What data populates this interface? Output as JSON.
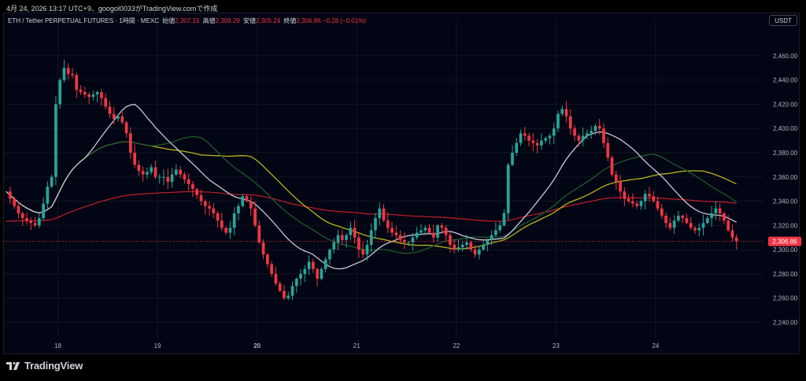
{
  "header": {
    "timestamp_line": "4月 24, 2026 13:17 UTC+9、googol0033がTradingView.comで作成"
  },
  "legend": {
    "symbol": "ETH / Tether PERPETUAL FUTURES · 1時間 · MEXC",
    "open_label": "始値",
    "open": "2,307.15",
    "high_label": "高値",
    "high": "2,309.29",
    "low_label": "安値",
    "low": "2,305.24",
    "close_label": "終値",
    "close": "2,306.86",
    "change": "−0.28 (−0.01%)"
  },
  "currency_button": "USDT",
  "footer": {
    "brand": "TradingView"
  },
  "colors": {
    "up": "#26a69a",
    "down": "#f23645",
    "ma_fast": "#c9c9d8",
    "ma_mid": "#1f5a2d",
    "ma_slow": "#b6b41e",
    "ma_long": "#b71c28",
    "grid": "#131722",
    "background": "#020513"
  },
  "chart_data": {
    "type": "candlestick",
    "title": "ETH / Tether PERPETUAL FUTURES · 1時間 · MEXC",
    "x_tick_labels": [
      "18",
      "19",
      "20",
      "21",
      "22",
      "23",
      "24"
    ],
    "x_tick_index": [
      12.5,
      36.5,
      60.5,
      84.5,
      108.5,
      132.5,
      156.5
    ],
    "bold_x_ticks": [
      "20"
    ],
    "y_ticks": [
      2240,
      2260,
      2280,
      2300,
      2320,
      2340,
      2360,
      2380,
      2400,
      2420,
      2440,
      2460
    ],
    "y_tick_labels": [
      "2,240.00",
      "2,260.00",
      "2,280.00",
      "2,300.00",
      "2,320.00",
      "2,340.00",
      "2,360.00",
      "2,380.00",
      "2,400.00",
      "2,420.00",
      "2,440.00",
      "2,460.00"
    ],
    "ylim": [
      2228,
      2480
    ],
    "last_price": 2306.86,
    "last_price_label": "2,306.86",
    "grid": true,
    "close_series": [
      2348,
      2342,
      2336,
      2330,
      2326,
      2324,
      2322,
      2320,
      2326,
      2338,
      2352,
      2360,
      2420,
      2440,
      2450,
      2445,
      2444,
      2432,
      2430,
      2428,
      2426,
      2428,
      2430,
      2425,
      2418,
      2412,
      2408,
      2410,
      2405,
      2396,
      2380,
      2370,
      2365,
      2362,
      2364,
      2368,
      2360,
      2360,
      2360,
      2356,
      2362,
      2366,
      2362,
      2358,
      2354,
      2350,
      2345,
      2340,
      2336,
      2334,
      2330,
      2324,
      2318,
      2314,
      2318,
      2330,
      2336,
      2344,
      2340,
      2334,
      2320,
      2306,
      2296,
      2288,
      2280,
      2272,
      2266,
      2260,
      2262,
      2270,
      2276,
      2280,
      2284,
      2290,
      2284,
      2276,
      2284,
      2292,
      2300,
      2306,
      2312,
      2308,
      2312,
      2318,
      2310,
      2300,
      2296,
      2304,
      2316,
      2326,
      2334,
      2324,
      2318,
      2314,
      2312,
      2308,
      2306,
      2306,
      2310,
      2314,
      2316,
      2318,
      2314,
      2310,
      2320,
      2318,
      2312,
      2304,
      2300,
      2302,
      2304,
      2306,
      2300,
      2296,
      2300,
      2304,
      2308,
      2312,
      2316,
      2320,
      2330,
      2370,
      2380,
      2388,
      2396,
      2394,
      2390,
      2388,
      2386,
      2390,
      2392,
      2394,
      2400,
      2412,
      2416,
      2410,
      2400,
      2394,
      2390,
      2394,
      2396,
      2398,
      2402,
      2400,
      2388,
      2376,
      2362,
      2356,
      2348,
      2342,
      2340,
      2338,
      2336,
      2340,
      2346,
      2344,
      2340,
      2334,
      2328,
      2322,
      2318,
      2324,
      2328,
      2326,
      2322,
      2318,
      2316,
      2318,
      2322,
      2326,
      2330,
      2334,
      2330,
      2324,
      2316,
      2310,
      2306.86
    ],
    "ma_fast_period": 20,
    "ma_mid_period": 36,
    "ma_slow_period": 48,
    "ma_long_period": 160
  }
}
